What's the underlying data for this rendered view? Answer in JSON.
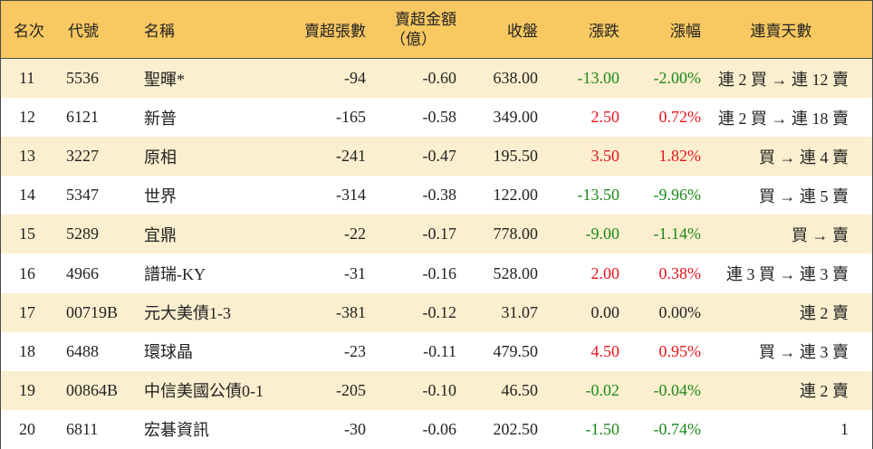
{
  "headers": {
    "rank": "名次",
    "code": "代號",
    "name": "名稱",
    "sell_volume": "賣超張數",
    "sell_amount_line1": "賣超金額",
    "sell_amount_line2": "（億）",
    "close": "收盤",
    "change": "漲跌",
    "change_pct": "漲幅",
    "streak": "連賣天數"
  },
  "rows": [
    {
      "rank": "11",
      "code": "5536",
      "name": "聖暉*",
      "vol": "-94",
      "amt": "-0.60",
      "close": "638.00",
      "chg": "-13.00",
      "pct": "-2.00%",
      "streak": "連 2 買 → 連 12 賣",
      "dir": "down"
    },
    {
      "rank": "12",
      "code": "6121",
      "name": "新普",
      "vol": "-165",
      "amt": "-0.58",
      "close": "349.00",
      "chg": "2.50",
      "pct": "0.72%",
      "streak": "連 2 買 → 連 18 賣",
      "dir": "up"
    },
    {
      "rank": "13",
      "code": "3227",
      "name": "原相",
      "vol": "-241",
      "amt": "-0.47",
      "close": "195.50",
      "chg": "3.50",
      "pct": "1.82%",
      "streak": "買 → 連 4 賣",
      "dir": "up"
    },
    {
      "rank": "14",
      "code": "5347",
      "name": "世界",
      "vol": "-314",
      "amt": "-0.38",
      "close": "122.00",
      "chg": "-13.50",
      "pct": "-9.96%",
      "streak": "買 → 連 5 賣",
      "dir": "down"
    },
    {
      "rank": "15",
      "code": "5289",
      "name": "宜鼎",
      "vol": "-22",
      "amt": "-0.17",
      "close": "778.00",
      "chg": "-9.00",
      "pct": "-1.14%",
      "streak": "買 → 賣",
      "dir": "down"
    },
    {
      "rank": "16",
      "code": "4966",
      "name": "譜瑞-KY",
      "vol": "-31",
      "amt": "-0.16",
      "close": "528.00",
      "chg": "2.00",
      "pct": "0.38%",
      "streak": "連 3 買 → 連 3 賣",
      "dir": "up"
    },
    {
      "rank": "17",
      "code": "00719B",
      "name": "元大美債1-3",
      "vol": "-381",
      "amt": "-0.12",
      "close": "31.07",
      "chg": "0.00",
      "pct": "0.00%",
      "streak": "連 2 賣",
      "dir": "flat"
    },
    {
      "rank": "18",
      "code": "6488",
      "name": "環球晶",
      "vol": "-23",
      "amt": "-0.11",
      "close": "479.50",
      "chg": "4.50",
      "pct": "0.95%",
      "streak": "買 → 連 3 賣",
      "dir": "up"
    },
    {
      "rank": "19",
      "code": "00864B",
      "name": "中信美國公債0-1",
      "vol": "-205",
      "amt": "-0.10",
      "close": "46.50",
      "chg": "-0.02",
      "pct": "-0.04%",
      "streak": "連 2 賣",
      "dir": "down"
    },
    {
      "rank": "20",
      "code": "6811",
      "name": "宏碁資訊",
      "vol": "-30",
      "amt": "-0.06",
      "close": "202.50",
      "chg": "-1.50",
      "pct": "-0.74%",
      "streak": "1",
      "dir": "down"
    }
  ],
  "colors": {
    "header_bg": "#f8c861",
    "odd_row_bg": "#fcefcf",
    "up": "#e8141e",
    "down": "#1a8a1a"
  }
}
